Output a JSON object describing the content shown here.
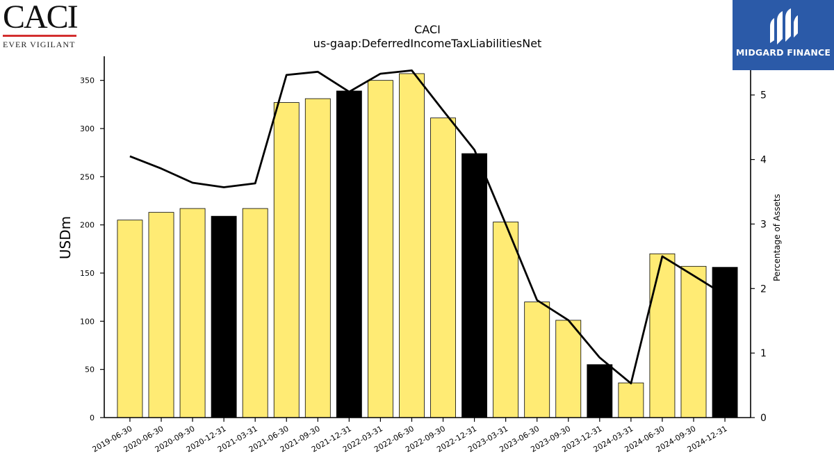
{
  "logos": {
    "left_text": "CACI",
    "left_tagline": "EVER VIGILANT",
    "right_text": "MIDGARD FINANCE"
  },
  "chart_data": {
    "type": "bar",
    "title": "CACI",
    "subtitle": "us-gaap:DeferredIncomeTaxLiabilitiesNet",
    "ylabel": "USDm",
    "y2label": "Percentage of Assets",
    "ylim": [
      0,
      375
    ],
    "y2lim": [
      0,
      5.6
    ],
    "yticks": [
      0,
      50,
      100,
      150,
      200,
      250,
      300,
      350
    ],
    "y2ticks": [
      0,
      1,
      2,
      3,
      4,
      5
    ],
    "categories": [
      "2019-06-30",
      "2020-06-30",
      "2020-09-30",
      "2020-12-31",
      "2021-03-31",
      "2021-06-30",
      "2021-09-30",
      "2021-12-31",
      "2022-03-31",
      "2022-06-30",
      "2022-09-30",
      "2022-12-31",
      "2023-03-31",
      "2023-06-30",
      "2023-09-30",
      "2023-12-31",
      "2024-03-31",
      "2024-06-30",
      "2024-09-30",
      "2024-12-31"
    ],
    "series": [
      {
        "kind": "bar",
        "values": [
          205,
          213,
          217,
          209,
          217,
          327,
          331,
          339,
          350,
          357,
          311,
          274,
          203,
          120,
          101,
          55,
          36,
          170,
          157,
          156
        ],
        "highlight": [
          false,
          false,
          false,
          true,
          false,
          false,
          false,
          true,
          false,
          false,
          false,
          true,
          false,
          false,
          false,
          true,
          false,
          false,
          false,
          true
        ]
      },
      {
        "kind": "line",
        "axis": "right",
        "values": [
          4.05,
          3.86,
          3.64,
          3.57,
          3.63,
          5.31,
          5.36,
          5.05,
          5.33,
          5.38,
          4.76,
          4.15,
          3.0,
          1.82,
          1.51,
          0.93,
          0.53,
          2.5,
          2.2,
          1.9
        ]
      }
    ],
    "colors": {
      "bar": "#ffeb74",
      "bar_highlight": "#000000",
      "line": "#000000"
    },
    "grid": false,
    "legend": "none"
  }
}
